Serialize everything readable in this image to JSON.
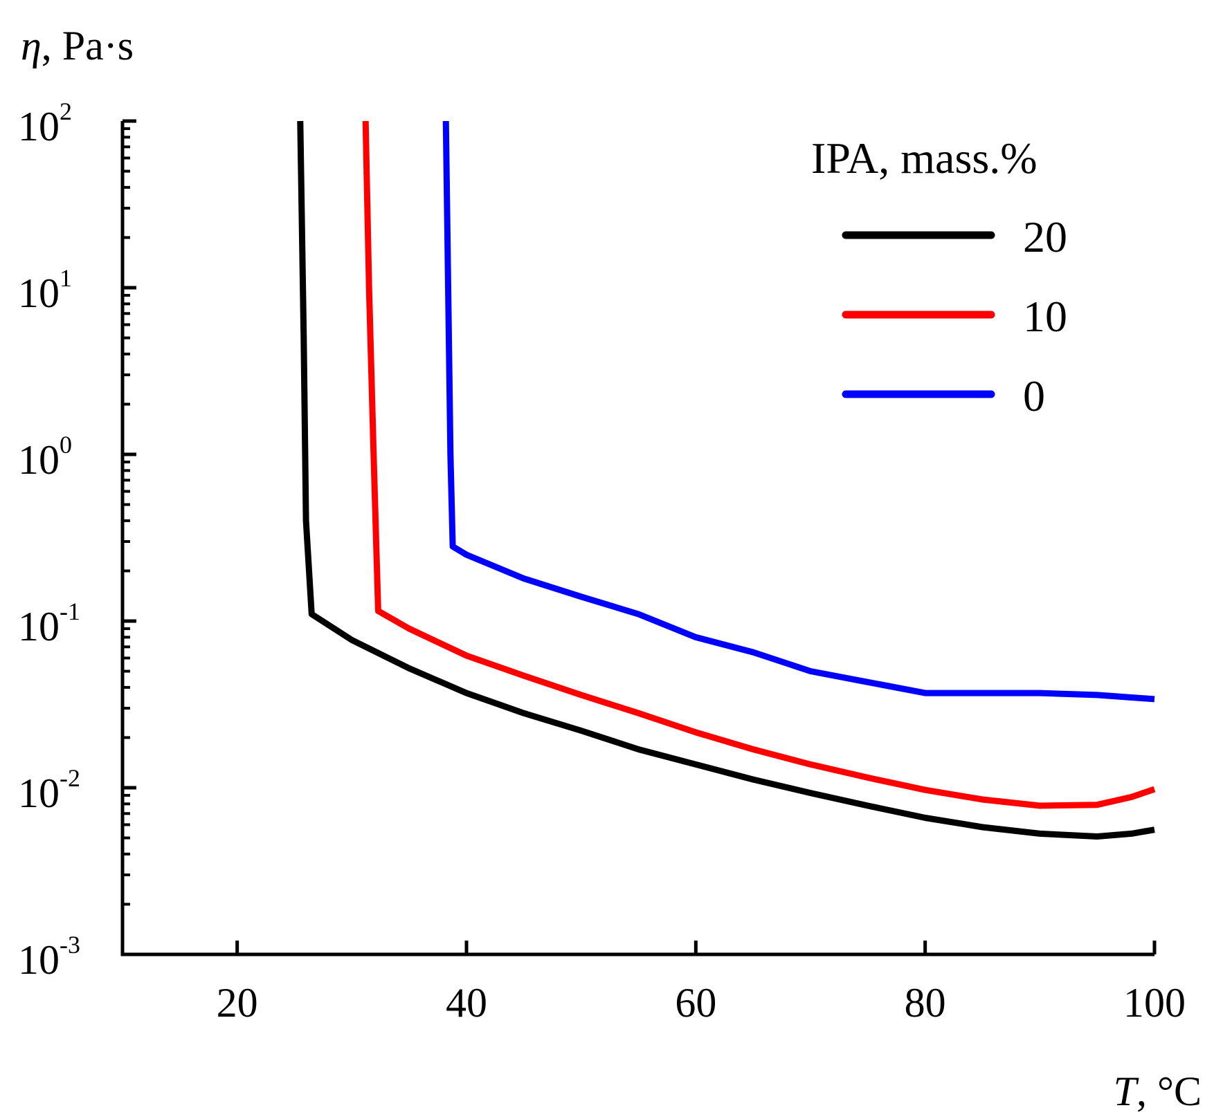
{
  "chart_data": {
    "type": "line",
    "y_scale": "log",
    "x_axis": {
      "symbol": "T",
      "unit_label": ", °C",
      "range": [
        10,
        100
      ],
      "ticks": [
        20,
        40,
        60,
        80,
        100
      ],
      "tick_labels": [
        "20",
        "40",
        "60",
        "80",
        "100"
      ]
    },
    "y_axis": {
      "symbol": "η",
      "unit_label": ", Pa·s",
      "range": [
        0.001,
        100
      ],
      "ticks": [
        0.001,
        0.01,
        0.1,
        1,
        10,
        100
      ],
      "tick_labels": [
        {
          "base": "10",
          "exp": "-3"
        },
        {
          "base": "10",
          "exp": "-2"
        },
        {
          "base": "10",
          "exp": "-1"
        },
        {
          "base": "10",
          "exp": "0"
        },
        {
          "base": "10",
          "exp": "1"
        },
        {
          "base": "10",
          "exp": "2"
        }
      ]
    },
    "legend": {
      "title": "IPA, mass.%",
      "position": "top-right"
    },
    "series": [
      {
        "name": "20",
        "color": "#000000",
        "points": [
          [
            25.5,
            100
          ],
          [
            25.8,
            5
          ],
          [
            26.0,
            0.4
          ],
          [
            26.5,
            0.11
          ],
          [
            30,
            0.077
          ],
          [
            35,
            0.052
          ],
          [
            40,
            0.037
          ],
          [
            45,
            0.028
          ],
          [
            50,
            0.022
          ],
          [
            55,
            0.017
          ],
          [
            60,
            0.0138
          ],
          [
            65,
            0.0112
          ],
          [
            70,
            0.0093
          ],
          [
            75,
            0.0078
          ],
          [
            80,
            0.0066
          ],
          [
            85,
            0.0058
          ],
          [
            90,
            0.0053
          ],
          [
            95,
            0.0051
          ],
          [
            98,
            0.0053
          ],
          [
            100,
            0.0056
          ]
        ]
      },
      {
        "name": "10",
        "color": "#ff0000",
        "points": [
          [
            31.2,
            100
          ],
          [
            31.5,
            10
          ],
          [
            31.9,
            1
          ],
          [
            32.3,
            0.115
          ],
          [
            35,
            0.09
          ],
          [
            40,
            0.062
          ],
          [
            45,
            0.047
          ],
          [
            50,
            0.036
          ],
          [
            55,
            0.028
          ],
          [
            60,
            0.0215
          ],
          [
            65,
            0.017
          ],
          [
            70,
            0.0138
          ],
          [
            75,
            0.0115
          ],
          [
            80,
            0.0097
          ],
          [
            85,
            0.0085
          ],
          [
            90,
            0.0078
          ],
          [
            95,
            0.0079
          ],
          [
            98,
            0.0088
          ],
          [
            100,
            0.0098
          ]
        ]
      },
      {
        "name": "0",
        "color": "#0000ff",
        "points": [
          [
            38.2,
            100
          ],
          [
            38.4,
            10
          ],
          [
            38.6,
            1
          ],
          [
            38.8,
            0.28
          ],
          [
            40,
            0.25
          ],
          [
            45,
            0.18
          ],
          [
            50,
            0.14
          ],
          [
            55,
            0.11
          ],
          [
            60,
            0.08
          ],
          [
            65,
            0.065
          ],
          [
            70,
            0.05
          ],
          [
            75,
            0.043
          ],
          [
            80,
            0.037
          ],
          [
            85,
            0.037
          ],
          [
            90,
            0.037
          ],
          [
            95,
            0.036
          ],
          [
            100,
            0.034
          ]
        ]
      }
    ]
  }
}
